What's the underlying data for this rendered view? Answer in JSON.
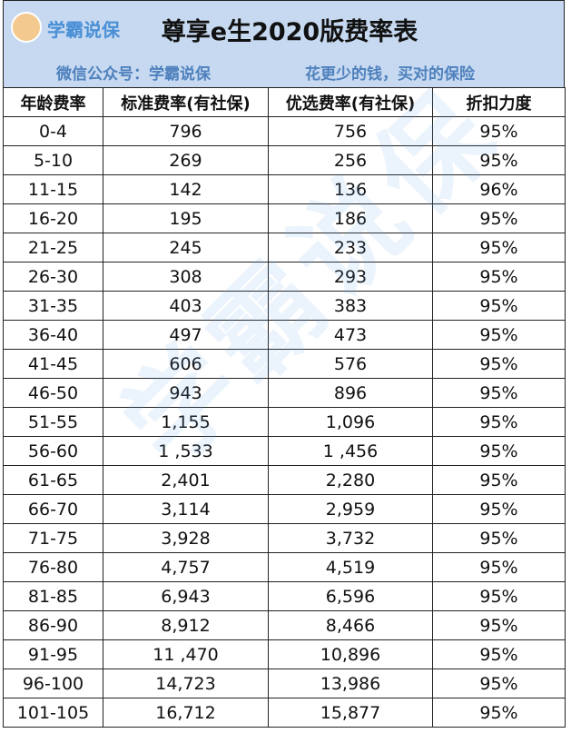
{
  "header": {
    "logo_text": "学霸说保",
    "title": "尊享e生2020版费率表",
    "subtitle_left": "微信公众号：学霸说保",
    "subtitle_right": "花更少的钱，买对的保险"
  },
  "watermark": "学霸说保",
  "table": {
    "columns": [
      "年龄费率",
      "标准费率(有社保)",
      "优选费率(有社保)",
      "折扣力度"
    ],
    "rows": [
      [
        "0-4",
        "796",
        "756",
        "95%"
      ],
      [
        "5-10",
        "269",
        "256",
        "95%"
      ],
      [
        "11-15",
        "142",
        "136",
        "96%"
      ],
      [
        "16-20",
        "195",
        "186",
        "95%"
      ],
      [
        "21-25",
        "245",
        "233",
        "95%"
      ],
      [
        "26-30",
        "308",
        "293",
        "95%"
      ],
      [
        "31-35",
        "403",
        "383",
        "95%"
      ],
      [
        "36-40",
        "497",
        "473",
        "95%"
      ],
      [
        "41-45",
        "606",
        "576",
        "95%"
      ],
      [
        "46-50",
        "943",
        "896",
        "95%"
      ],
      [
        "51-55",
        "1,155",
        "1,096",
        "95%"
      ],
      [
        "56-60",
        "1 ,533",
        "1 ,456",
        "95%"
      ],
      [
        "61-65",
        "2,401",
        "2,280",
        "95%"
      ],
      [
        "66-70",
        "3,114",
        "2,959",
        "95%"
      ],
      [
        "71-75",
        "3,928",
        "3,732",
        "95%"
      ],
      [
        "76-80",
        "4,757",
        "4,519",
        "95%"
      ],
      [
        "81-85",
        "6,943",
        "6,596",
        "95%"
      ],
      [
        "86-90",
        "8,912",
        "8,466",
        "95%"
      ],
      [
        "91-95",
        "11 ,470",
        "10,896",
        "95%"
      ],
      [
        "96-100",
        "14,723",
        "13,986",
        "95%"
      ],
      [
        "101-105",
        "16,712",
        "15,877",
        "95%"
      ]
    ]
  }
}
